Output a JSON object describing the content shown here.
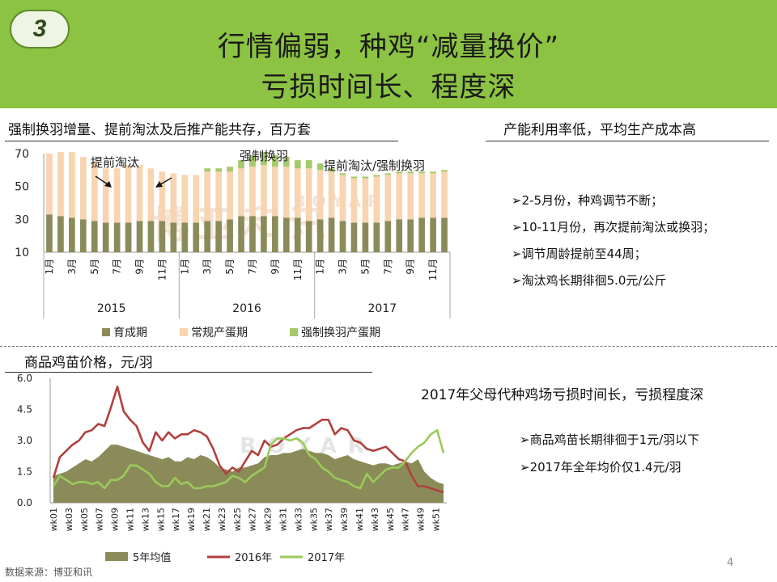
{
  "header": {
    "badge": "3",
    "title_line1": "行情偏弱，种鸡“减量换价”",
    "title_line2": "亏损时间长、程度深"
  },
  "section1": {
    "title": "强制换羽增量、提前淘汰及后推产能共存，百万套"
  },
  "section2": {
    "title": "产能利用率低，平均生产成本高",
    "bullets": [
      "➢2-5月份，种鸡调节不断；",
      "➢10-11月份，再次提前淘汰或换羽；",
      "➢调节周龄提前至44周；",
      "➢淘汰鸡长期徘徊5.0元/公斤"
    ]
  },
  "section3": {
    "title": "商品鸡苗价格，元/羽"
  },
  "section4": {
    "title": "2017年父母代种鸡场亏损时间长，亏损程度深",
    "bullets": [
      "➢商品鸡苗长期徘徊于1元/羽以下",
      "➢2017年全年均价仅1.4元/羽"
    ]
  },
  "footer": {
    "source": "数据来源：博亚和讯",
    "page_number": "4"
  },
  "watermark": {
    "text": "博亚和讯",
    "latin": "BOYAR"
  },
  "colors": {
    "header_green": "#8cc342",
    "olive": "#8b8b5a",
    "peach": "#f8d4b0",
    "light_green": "#a6c96a",
    "red": "#b0413e",
    "green_line": "#9bca5a"
  },
  "chart_data": [
    {
      "type": "bar",
      "stacked": true,
      "ylim": [
        10,
        70
      ],
      "yticks": [
        "70",
        "50",
        "30",
        "10"
      ],
      "month_labels": [
        "1月",
        "",
        "3月",
        "",
        "5月",
        "",
        "7月",
        "",
        "9月",
        "",
        "11月",
        "",
        "1月",
        "",
        "3月",
        "",
        "5月",
        "",
        "7月",
        "",
        "9月",
        "",
        "11月",
        "",
        "1月",
        "",
        "3月",
        "",
        "5月",
        "",
        "7月",
        "",
        "9月",
        "",
        "11月",
        ""
      ],
      "year_groups": [
        {
          "label": "2015",
          "months": 12
        },
        {
          "label": "2016",
          "months": 12
        },
        {
          "label": "2017",
          "months": 12
        }
      ],
      "annotations": [
        {
          "text": "提前淘汰",
          "near": "2015 mid"
        },
        {
          "text": "强制换羽",
          "near": "2016 mid"
        },
        {
          "text": "提前淘汰/强制换羽",
          "near": "2017"
        }
      ],
      "series": [
        {
          "name": "育成期",
          "color": "#8b8b5a",
          "values": [
            23,
            22,
            21,
            20,
            19,
            18,
            18,
            18,
            19,
            19,
            19,
            18,
            18,
            18,
            19,
            19,
            20,
            22,
            22,
            22,
            22,
            21,
            21,
            19,
            20,
            21,
            19,
            18,
            18,
            18,
            19,
            20,
            20,
            21,
            21,
            21
          ]
        },
        {
          "name": "常规产蛋期",
          "color": "#f8d4b0",
          "values": [
            37,
            39,
            40,
            38,
            36,
            33,
            33,
            35,
            34,
            32,
            30,
            30,
            29,
            29,
            30,
            30,
            29,
            29,
            30,
            31,
            30,
            31,
            30,
            32,
            30,
            28,
            28,
            27,
            27,
            28,
            28,
            28,
            28,
            27,
            27,
            28
          ]
        },
        {
          "name": "强制换羽产蛋期",
          "color": "#a6c96a",
          "values": [
            0,
            0,
            0,
            0,
            0,
            0,
            0,
            0,
            0,
            0,
            0,
            0,
            0,
            0,
            2,
            2,
            3,
            5,
            7,
            8,
            7,
            6,
            5,
            5,
            4,
            2,
            1,
            1,
            1,
            1,
            1,
            1,
            1,
            1,
            1,
            1
          ]
        }
      ]
    },
    {
      "type": "line",
      "ylim": [
        0,
        6
      ],
      "yticks": [
        "0.0",
        "1.5",
        "3.0",
        "4.5",
        "6.0"
      ],
      "week_labels": [
        "wk01",
        "wk03",
        "wk05",
        "wk07",
        "wk09",
        "wk11",
        "wk13",
        "wk15",
        "wk17",
        "wk19",
        "wk21",
        "wk23",
        "wk25",
        "wk27",
        "wk29",
        "wk31",
        "wk33",
        "wk35",
        "wk37",
        "wk39",
        "wk41",
        "wk43",
        "wk45",
        "wk47",
        "wk49",
        "wk51"
      ],
      "series": [
        {
          "name": "5年均值",
          "kind": "area",
          "color": "#8b8b5a",
          "values": [
            1.3,
            1.4,
            1.5,
            1.7,
            1.9,
            2.1,
            2.0,
            2.2,
            2.5,
            2.8,
            2.8,
            2.7,
            2.6,
            2.5,
            2.4,
            2.3,
            2.2,
            2.1,
            2.2,
            2.0,
            2.0,
            2.2,
            2.1,
            2.3,
            2.2,
            2.0,
            1.7,
            1.6,
            1.5,
            1.7,
            1.7,
            1.8,
            1.9,
            2.2,
            2.3,
            2.3,
            2.4,
            2.4,
            2.5,
            2.6,
            2.5,
            2.4,
            2.4,
            2.3,
            2.1,
            2.2,
            2.3,
            2.1,
            2.0,
            1.9,
            1.8,
            1.9,
            1.9,
            1.8,
            1.9,
            2.0,
            1.9,
            2.1,
            1.5,
            1.2,
            1.0,
            0.9
          ]
        },
        {
          "name": "2016年",
          "kind": "line",
          "color": "#b0413e",
          "values": [
            1.2,
            2.2,
            2.5,
            2.8,
            3.0,
            3.4,
            3.5,
            3.8,
            3.7,
            4.6,
            5.6,
            4.4,
            4.0,
            3.7,
            2.9,
            2.5,
            3.4,
            3.0,
            3.4,
            3.1,
            3.3,
            3.3,
            3.5,
            3.4,
            3.2,
            2.6,
            1.8,
            1.4,
            1.7,
            1.5,
            2.0,
            2.5,
            2.3,
            3.0,
            2.7,
            2.8,
            3.1,
            3.3,
            3.5,
            3.6,
            3.6,
            3.8,
            4.0,
            4.0,
            3.3,
            3.6,
            3.5,
            3.0,
            2.9,
            2.6,
            2.5,
            2.6,
            2.7,
            2.4,
            2.1,
            2.0,
            1.3,
            0.8,
            0.8,
            0.7,
            0.6,
            0.5
          ]
        },
        {
          "name": "2017年",
          "kind": "line",
          "color": "#9bca5a",
          "values": [
            0.8,
            1.3,
            1.1,
            0.9,
            1.0,
            1.0,
            0.9,
            1.0,
            0.7,
            1.1,
            1.1,
            1.3,
            1.8,
            1.8,
            1.6,
            1.4,
            1.0,
            0.8,
            0.8,
            1.2,
            0.9,
            1.0,
            0.7,
            0.7,
            0.8,
            0.8,
            0.9,
            1.0,
            1.3,
            1.2,
            1.0,
            1.3,
            1.5,
            1.7,
            2.8,
            3.1,
            3.1,
            3.0,
            3.1,
            2.9,
            2.3,
            2.1,
            1.7,
            1.5,
            1.2,
            1.1,
            1.0,
            0.8,
            0.7,
            1.4,
            1.0,
            1.3,
            1.6,
            1.7,
            1.7,
            2.0,
            2.4,
            2.7,
            2.9,
            3.3,
            3.5,
            2.4
          ]
        }
      ]
    }
  ]
}
